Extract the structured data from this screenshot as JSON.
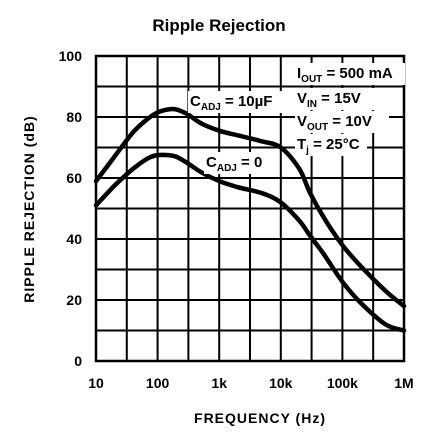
{
  "chart_data": {
    "type": "line",
    "title": "Ripple Rejection",
    "xlabel": "FREQUENCY (Hz)",
    "ylabel": "RIPPLE REJECTION (dB)",
    "x_scale": "log",
    "xlim": [
      10,
      1000000
    ],
    "ylim": [
      0,
      100
    ],
    "x_ticks": [
      10,
      100,
      1000,
      10000,
      100000,
      1000000
    ],
    "x_tick_labels": [
      "10",
      "100",
      "1k",
      "10k",
      "100k",
      "1M"
    ],
    "y_ticks": [
      0,
      20,
      40,
      60,
      80,
      100
    ],
    "y_tick_labels": [
      "0",
      "20",
      "40",
      "60",
      "80",
      "100"
    ],
    "grid": true,
    "series": [
      {
        "name": "CADJ = 10µF",
        "label": {
          "main": "C",
          "sub": "ADJ",
          "rest": " = 10µF"
        },
        "x": [
          10,
          20,
          40,
          70,
          100,
          150,
          200,
          300,
          500,
          1000,
          2000,
          5000,
          10000,
          20000,
          30000,
          50000,
          100000,
          200000,
          500000,
          1000000
        ],
        "y": [
          59,
          67,
          75,
          79.5,
          81.5,
          82.5,
          82.5,
          81,
          78,
          75.5,
          74,
          72,
          70,
          63,
          55,
          47,
          38,
          31,
          23,
          18
        ]
      },
      {
        "name": "CADJ = 0",
        "label": {
          "main": "C",
          "sub": "ADJ",
          "rest": " = 0"
        },
        "x": [
          10,
          20,
          40,
          70,
          100,
          150,
          200,
          300,
          500,
          1000,
          2000,
          5000,
          10000,
          20000,
          30000,
          50000,
          100000,
          200000,
          500000,
          1000000
        ],
        "y": [
          51,
          57.5,
          63,
          66.5,
          67.5,
          67.5,
          67,
          65,
          62,
          59,
          57,
          55,
          52,
          46,
          41,
          35,
          26,
          19,
          12,
          10
        ]
      }
    ],
    "conditions": [
      {
        "main": "I",
        "sub": "OUT",
        "rest": " = 500 mA"
      },
      {
        "main": "V",
        "sub": "IN",
        "rest": " = 15V"
      },
      {
        "main": "V",
        "sub": "OUT",
        "rest": " = 10V"
      },
      {
        "main": "T",
        "sub": "j",
        "rest": " = 25°C"
      }
    ]
  }
}
